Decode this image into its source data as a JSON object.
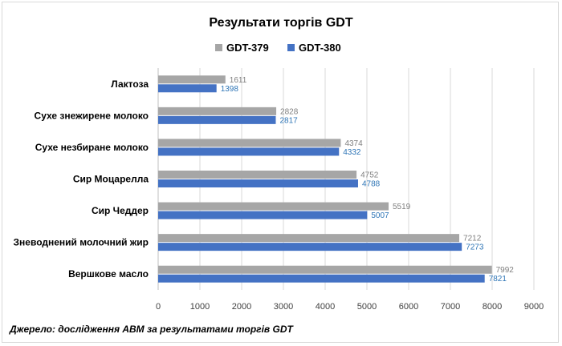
{
  "chart_data": {
    "type": "bar",
    "orientation": "horizontal",
    "title": "Результати торгів GDT",
    "categories": [
      "Лактоза",
      "Сухе знежирене молоко",
      "Сухе незбиране молоко",
      "Сир Моцарелла",
      "Сир Чеддер",
      "Зневоднений молочний жир",
      "Вершкове масло"
    ],
    "series": [
      {
        "name": "GDT-379",
        "color": "#a6a6a6",
        "label_color": "#7f7f7f",
        "values": [
          1611,
          2828,
          4374,
          4752,
          5519,
          7212,
          7992
        ]
      },
      {
        "name": "GDT-380",
        "color": "#4472c4",
        "label_color": "#2e75b6",
        "values": [
          1398,
          2817,
          4332,
          4788,
          5007,
          7273,
          7821
        ]
      }
    ],
    "xlim": [
      0,
      9000
    ],
    "xticks": [
      "0",
      "1000",
      "2000",
      "3000",
      "4000",
      "5000",
      "6000",
      "7000",
      "8000",
      "9000"
    ],
    "grid": true,
    "legend_position": "top"
  },
  "source_note": "Джерело: дослідження АВМ за результатами торгів GDT"
}
